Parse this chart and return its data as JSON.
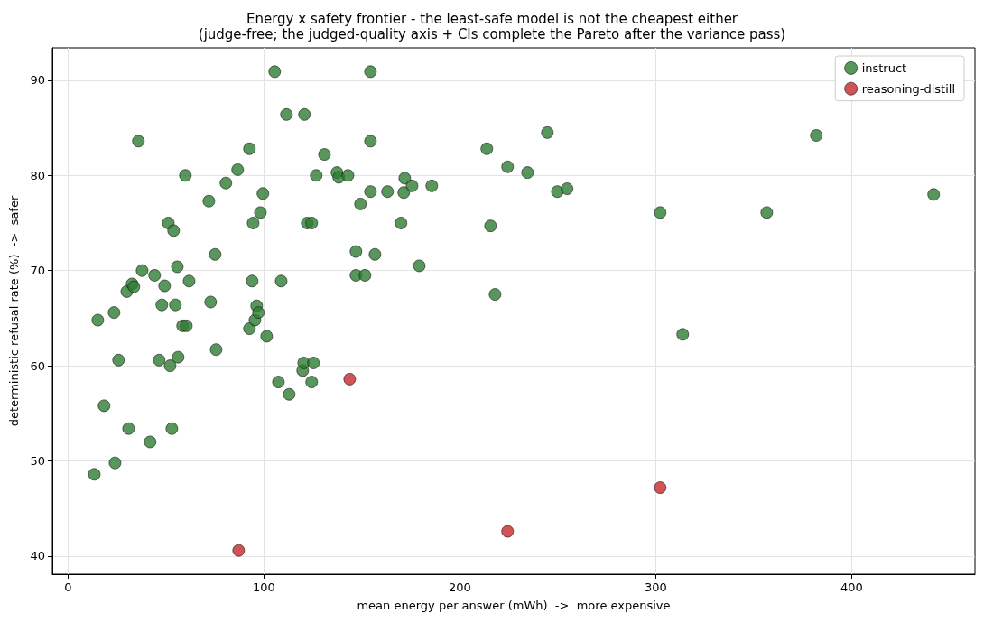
{
  "chart_data": {
    "type": "scatter",
    "title": "Energy x safety frontier - the least-safe model is not the cheapest either",
    "subtitle": "(judge-free; the judged-quality axis + CIs complete the Pareto after the variance pass)",
    "xlabel": "mean energy per answer (mWh)  ->  more expensive",
    "ylabel": "deterministic refusal rate (%)  ->  safer",
    "xlim": [
      -8,
      463
    ],
    "xticks": [
      0,
      100,
      200,
      300,
      400
    ],
    "ylim": [
      38.1,
      93.4
    ],
    "yticks": [
      40,
      50,
      60,
      70,
      80,
      90
    ],
    "grid": true,
    "legend": "top right",
    "marker": "circle",
    "series": [
      {
        "name": "instruct",
        "color": "#2e7d32",
        "x": [
          13.4,
          15.2,
          18.4,
          23.5,
          24.0,
          25.8,
          30.0,
          30.9,
          32.7,
          33.6,
          35.9,
          37.8,
          41.9,
          44.2,
          46.5,
          47.9,
          49.3,
          51.2,
          52.1,
          53.0,
          53.9,
          54.8,
          55.8,
          56.2,
          58.5,
          60.4,
          59.9,
          61.8,
          71.9,
          72.8,
          75.1,
          75.6,
          80.6,
          86.6,
          92.6,
          92.6,
          94.0,
          94.5,
          95.4,
          96.3,
          97.2,
          98.2,
          99.5,
          101.4,
          105.5,
          107.4,
          108.8,
          111.5,
          112.9,
          119.8,
          120.3,
          120.7,
          122.1,
          124.4,
          124.4,
          125.3,
          126.7,
          130.9,
          137.3,
          138.2,
          142.9,
          147.0,
          147.0,
          149.3,
          151.6,
          154.4,
          154.4,
          154.4,
          156.7,
          163.1,
          170.0,
          171.4,
          171.9,
          175.6,
          185.7,
          179.3,
          213.8,
          215.7,
          218.0,
          224.4,
          234.6,
          244.7,
          249.8,
          254.8,
          302.3,
          313.8,
          356.7,
          382.0,
          441.9
        ],
        "values": [
          48.6,
          64.8,
          55.8,
          65.6,
          49.8,
          60.6,
          67.8,
          53.4,
          68.6,
          68.3,
          83.6,
          70.0,
          52.0,
          69.5,
          60.6,
          66.4,
          68.4,
          75.0,
          60.0,
          53.4,
          74.2,
          66.4,
          70.4,
          60.9,
          64.2,
          64.2,
          80.0,
          68.9,
          77.3,
          66.7,
          71.7,
          61.7,
          79.2,
          80.6,
          82.8,
          63.9,
          68.9,
          75.0,
          64.8,
          66.3,
          65.6,
          76.1,
          78.1,
          63.1,
          90.9,
          58.3,
          68.9,
          86.4,
          57.0,
          59.5,
          60.3,
          86.4,
          75.0,
          75.0,
          58.3,
          60.3,
          80.0,
          82.2,
          80.3,
          79.8,
          80.0,
          69.5,
          72.0,
          77.0,
          69.5,
          83.6,
          90.9,
          78.3,
          71.7,
          78.3,
          75.0,
          78.2,
          79.7,
          78.9,
          78.9,
          70.5,
          82.8,
          74.7,
          67.5,
          80.9,
          80.3,
          84.5,
          78.3,
          78.6,
          76.1,
          63.3,
          76.1,
          84.2,
          78.0
        ]
      },
      {
        "name": "reasoning-distill",
        "color": "#c62828",
        "x": [
          87.1,
          143.8,
          224.4,
          302.3
        ],
        "values": [
          40.6,
          58.6,
          42.6,
          47.2
        ]
      }
    ]
  }
}
